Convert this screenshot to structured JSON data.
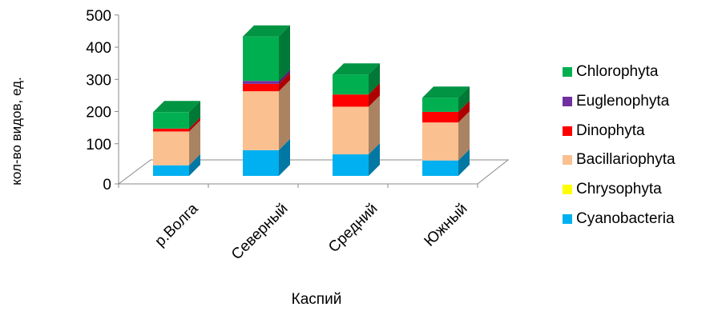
{
  "chart_data": {
    "type": "bar",
    "stacked": true,
    "three_d": true,
    "categories": [
      "р.Волга",
      "Северный",
      "Средний",
      "Южный"
    ],
    "xlabel": "Каспий",
    "ylabel": "кол-во видов, ед.",
    "ylim": [
      0,
      500
    ],
    "yticks": [
      "0",
      "100",
      "200",
      "300",
      "400",
      "500"
    ],
    "legend_position": "right",
    "grid": false,
    "series": [
      {
        "name": "Cyanobacteria",
        "color": "#00b0f0",
        "values": [
          33,
          80,
          67,
          48
        ]
      },
      {
        "name": "Chrysophyta",
        "color": "#ffff00",
        "values": [
          0,
          0,
          0,
          0
        ]
      },
      {
        "name": "Bacillariophyta",
        "color": "#fac090",
        "values": [
          105,
          183,
          148,
          118
        ]
      },
      {
        "name": "Dinophyta",
        "color": "#ff0000",
        "values": [
          9,
          23,
          38,
          33
        ]
      },
      {
        "name": "Euglenophyta",
        "color": "#7030a0",
        "values": [
          0,
          9,
          0,
          0
        ]
      },
      {
        "name": "Chlorophyta",
        "color": "#00b050",
        "values": [
          51,
          138,
          62,
          44
        ]
      }
    ]
  }
}
